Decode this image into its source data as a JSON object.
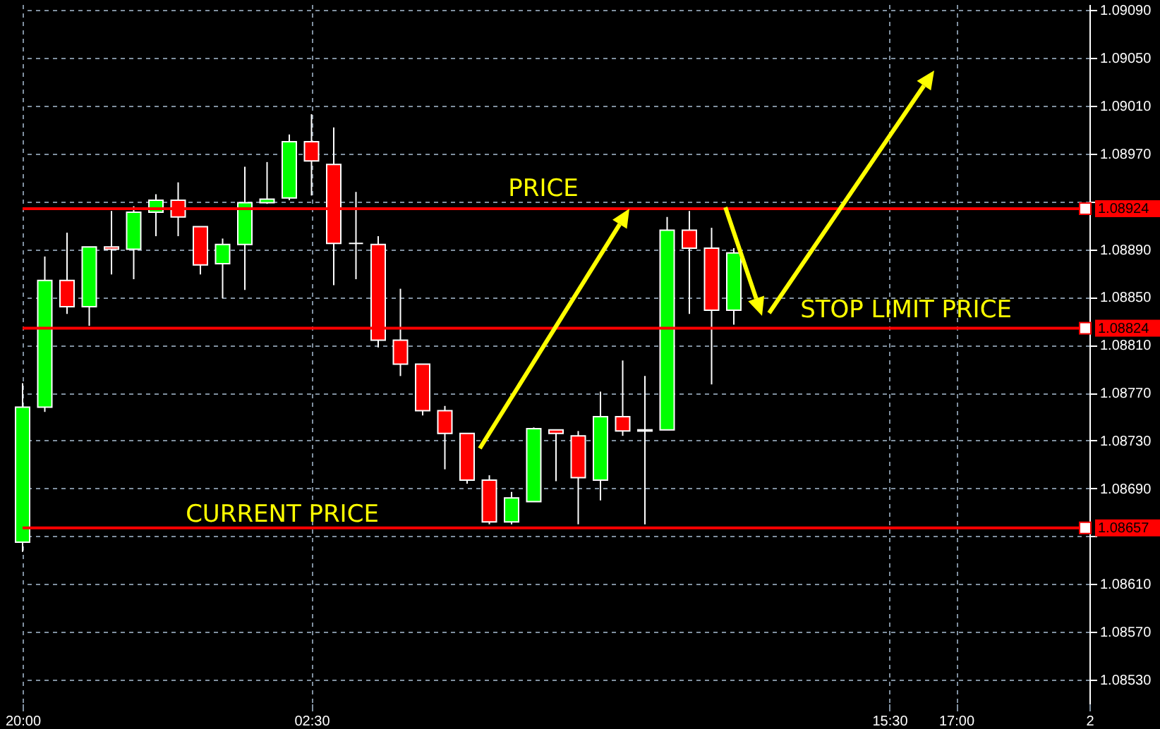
{
  "chart_data": {
    "type": "candlestick",
    "categories": [
      "20:00",
      null,
      null,
      null,
      null,
      null,
      null,
      null,
      null,
      null,
      null,
      null,
      null,
      "02:30",
      null,
      null,
      null,
      null,
      null,
      null,
      null,
      null,
      null,
      null,
      null,
      null,
      null,
      null,
      null,
      null,
      null,
      null,
      null,
      null,
      null,
      null,
      null,
      null,
      null,
      "15:30",
      null,
      null,
      "17:00",
      null,
      null,
      null,
      null,
      null,
      "2"
    ],
    "ohlc": [
      [
        1.08645,
        1.08778,
        1.08637,
        1.08758
      ],
      [
        1.08758,
        1.08884,
        1.08754,
        1.08864
      ],
      [
        1.08864,
        1.08904,
        1.08836,
        1.08842
      ],
      [
        1.08842,
        1.08892,
        1.08826,
        1.08892
      ],
      [
        1.08892,
        1.08922,
        1.08869,
        1.0889
      ],
      [
        1.0889,
        1.08926,
        1.08865,
        1.08921
      ],
      [
        1.08921,
        1.08936,
        1.08901,
        1.08931
      ],
      [
        1.08931,
        1.08946,
        1.08901,
        1.08917
      ],
      [
        1.08909,
        1.08909,
        1.08869,
        1.08877
      ],
      [
        1.08878,
        1.08899,
        1.08849,
        1.08894
      ],
      [
        1.08894,
        1.08959,
        1.08856,
        1.08929
      ],
      [
        1.08929,
        1.08963,
        1.08928,
        1.08932
      ],
      [
        1.08933,
        1.08986,
        1.08931,
        1.0898
      ],
      [
        1.0898,
        1.09003,
        1.08935,
        1.08964
      ],
      [
        1.08961,
        1.08992,
        1.0886,
        1.08895
      ],
      [
        1.08895,
        1.08938,
        1.08865,
        1.08895
      ],
      [
        1.08894,
        1.08901,
        1.08808,
        1.08814
      ],
      [
        1.08814,
        1.08857,
        1.08784,
        1.08794
      ],
      [
        1.08794,
        1.08794,
        1.08751,
        1.08755
      ],
      [
        1.08755,
        1.08759,
        1.08706,
        1.08736
      ],
      [
        1.08736,
        1.08736,
        1.08694,
        1.08697
      ],
      [
        1.08697,
        1.08701,
        1.0866,
        1.08662
      ],
      [
        1.08662,
        1.08687,
        1.0866,
        1.08682
      ],
      [
        1.08679,
        1.08741,
        1.08679,
        1.0874
      ],
      [
        1.08739,
        1.08739,
        1.08696,
        1.08736
      ],
      [
        1.08734,
        1.08738,
        1.0866,
        1.08699
      ],
      [
        1.08697,
        1.08771,
        1.0868,
        1.0875
      ],
      [
        1.0875,
        1.08797,
        1.08734,
        1.08738
      ],
      [
        1.08738,
        1.08784,
        1.0866,
        1.08739
      ],
      [
        1.08739,
        1.08917,
        1.08739,
        1.08906
      ],
      [
        1.08906,
        1.08922,
        1.08836,
        1.08891
      ],
      [
        1.08891,
        1.08908,
        1.08777,
        1.08839
      ],
      [
        1.08839,
        1.08891,
        1.08827,
        1.08887
      ],
      null,
      null,
      null,
      null,
      null,
      null,
      null,
      null,
      null,
      null,
      null,
      null,
      null,
      null,
      null,
      null
    ],
    "colors": [
      "#00ff00",
      "#00ff00",
      "#ff0000",
      "#00ff00",
      "#ff0000",
      "#00ff00",
      "#00ff00",
      "#ff0000",
      "#ff0000",
      "#00ff00",
      "#00ff00",
      "#00ff00",
      "#00ff00",
      "#ff0000",
      "#ff0000",
      "#ffffff",
      "#ff0000",
      "#ff0000",
      "#ff0000",
      "#ff0000",
      "#ff0000",
      "#ff0000",
      "#00ff00",
      "#00ff00",
      "#ff0000",
      "#ff0000",
      "#00ff00",
      "#ff0000",
      "#00ff00",
      "#00ff00",
      "#ff0000",
      "#ff0000",
      "#00ff00",
      null,
      null,
      null,
      null,
      null,
      null,
      null,
      null,
      null,
      null,
      null,
      null,
      null,
      null,
      null,
      null
    ],
    "ylim": [
      1.0851,
      1.09095
    ],
    "yticks": [
      {
        "value": 1.0853,
        "label": "1.08530"
      },
      {
        "value": 1.0857,
        "label": "1.08570"
      },
      {
        "value": 1.0861,
        "label": "1.08610"
      },
      {
        "value": 1.0865,
        "label": null
      },
      {
        "value": 1.0869,
        "label": "1.08690"
      },
      {
        "value": 1.0873,
        "label": "1.08730"
      },
      {
        "value": 1.0877,
        "label": "1.08770"
      },
      {
        "value": 1.0881,
        "label": "1.08810"
      },
      {
        "value": 1.0885,
        "label": "1.08850"
      },
      {
        "value": 1.0889,
        "label": "1.08890"
      },
      {
        "value": 1.0893,
        "label": null
      },
      {
        "value": 1.0897,
        "label": "1.08970"
      },
      {
        "value": 1.0901,
        "label": "1.09010"
      },
      {
        "value": 1.0905,
        "label": "1.09050"
      },
      {
        "value": 1.0909,
        "label": "1.09090"
      }
    ],
    "grid": true,
    "ref_lines": [
      {
        "axis": "y",
        "value": 1.08924,
        "label": "1.08924",
        "color": "#ff0000"
      },
      {
        "axis": "y",
        "value": 1.08824,
        "label": "1.08824",
        "color": "#ff0000"
      },
      {
        "axis": "y",
        "value": 1.08657,
        "label": "1.08657",
        "color": "#ff0000"
      }
    ],
    "annotations": [
      "PRICE",
      "STOP LIMIT PRICE",
      "CURRENT PRICE"
    ]
  }
}
